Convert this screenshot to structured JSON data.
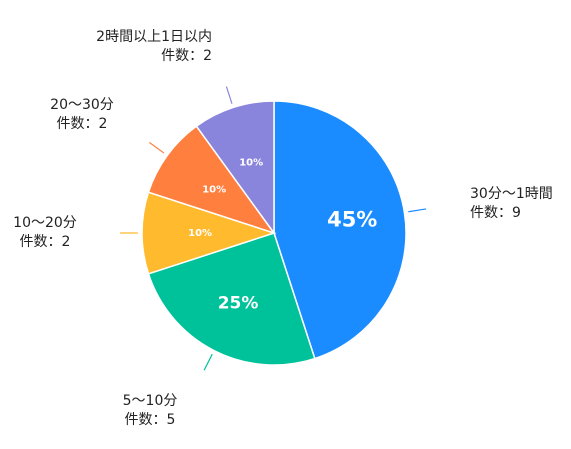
{
  "chart_data": {
    "type": "pie",
    "unit_label": "件数：",
    "slices": [
      {
        "category": "30分〜1時間",
        "count": 9,
        "percent_label": "45%",
        "color": "#1a8cff"
      },
      {
        "category": "5〜10分",
        "count": 5,
        "percent_label": "25%",
        "color": "#00c29a"
      },
      {
        "category": "10〜20分",
        "count": 2,
        "percent_label": "10%",
        "color": "#ffba2e"
      },
      {
        "category": "20〜30分",
        "count": 2,
        "percent_label": "10%",
        "color": "#ff7f3f"
      },
      {
        "category": "2時間以上1日以内",
        "count": 2,
        "percent_label": "10%",
        "color": "#8a85dc"
      }
    ]
  }
}
